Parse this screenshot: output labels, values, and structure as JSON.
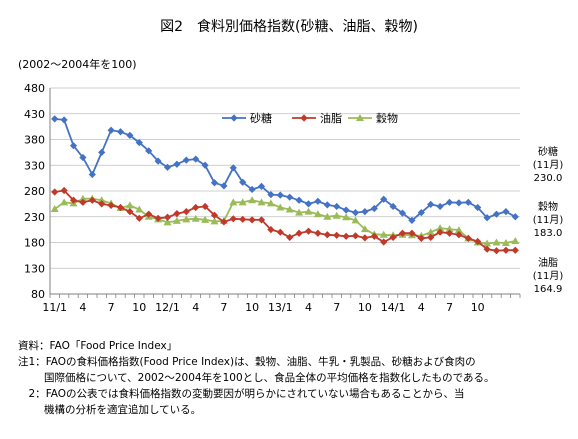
{
  "title": "図2　食料別価格指数(砂糖、油脂、穀物)",
  "units_note": "(2002〜2004年を100)",
  "end_labels": [
    {
      "name": "砂糖",
      "period": "(11月)",
      "value": "230.0"
    },
    {
      "name": "穀物",
      "period": "(11月)",
      "value": "183.0"
    },
    {
      "name": "油脂",
      "period": "(11月)",
      "value": "164.9"
    }
  ],
  "notes": {
    "source": "資料：FAO「Food Price Index」",
    "note1_label": "注1：",
    "note1_text": "FAOの食料価格指数(Food Price Index)は、穀物、油脂、牛乳・乳製品、砂糖および食肉の",
    "note1_text2": "国際価格について、2002〜2004年を100とし、食品全体の平均価格を指数化したものである。",
    "note2_label": "　2：",
    "note2_text": "FAOの公表では食料価格指数の変動要因が明らかにされていない場合もあることから、当",
    "note2_text2": "機構の分析を適宜追加している。"
  },
  "colors": {
    "sugar": "#4472c4",
    "oil": "#c0392b",
    "grain": "#9bbb59",
    "grid": "#bfbfbf",
    "axis": "#808080"
  },
  "chart_data": {
    "type": "line",
    "x_tick_labels": [
      "11/1",
      "4",
      "7",
      "10",
      "12/1",
      "4",
      "7",
      "10",
      "13/1",
      "4",
      "7",
      "10",
      "14/1",
      "4",
      "7",
      "10"
    ],
    "ylim": [
      80,
      480
    ],
    "y_ticks": [
      80,
      130,
      180,
      230,
      280,
      330,
      380,
      430,
      480
    ],
    "grid": true,
    "legend_position": "top-right",
    "series": [
      {
        "name": "砂糖",
        "color": "#4472c4",
        "marker": "diamond",
        "values": [
          420,
          418,
          368,
          345,
          312,
          355,
          398,
          395,
          388,
          374,
          358,
          338,
          326,
          332,
          340,
          342,
          330,
          296,
          290,
          325,
          297,
          283,
          289,
          273,
          272,
          268,
          262,
          255,
          260,
          253,
          250,
          243,
          238,
          240,
          246,
          264,
          250,
          237,
          223,
          238,
          254,
          250,
          258,
          257,
          258,
          248,
          228,
          235,
          240,
          230
        ]
      },
      {
        "name": "油脂",
        "color": "#c0392b",
        "marker": "diamond",
        "values": [
          278,
          281,
          262,
          258,
          262,
          255,
          252,
          248,
          240,
          227,
          235,
          227,
          229,
          236,
          240,
          248,
          250,
          233,
          220,
          226,
          225,
          224,
          224,
          205,
          200,
          190,
          198,
          202,
          198,
          195,
          194,
          192,
          193,
          189,
          192,
          181,
          190,
          198,
          198,
          188,
          190,
          200,
          198,
          195,
          188,
          182,
          167,
          164,
          165,
          165
        ]
      },
      {
        "name": "穀物",
        "color": "#9bbb59",
        "marker": "triangle",
        "values": [
          245,
          258,
          256,
          265,
          265,
          262,
          256,
          247,
          252,
          244,
          230,
          225,
          219,
          222,
          225,
          226,
          224,
          221,
          222,
          258,
          258,
          262,
          258,
          256,
          248,
          244,
          238,
          240,
          235,
          230,
          232,
          229,
          223,
          206,
          196,
          195,
          194,
          195,
          194,
          193,
          200,
          208,
          206,
          204,
          188,
          180,
          178,
          180,
          179,
          183
        ]
      }
    ]
  }
}
